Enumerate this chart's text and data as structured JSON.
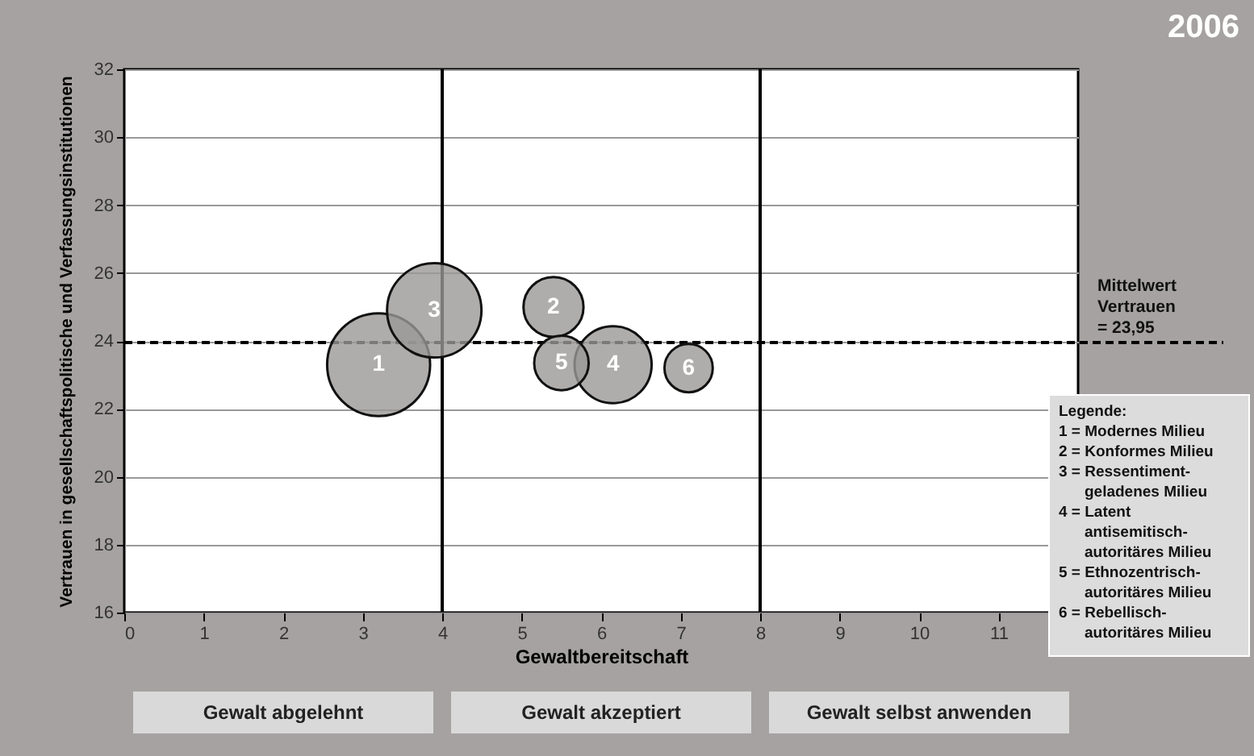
{
  "chart_data": {
    "type": "bubble",
    "title": "2006",
    "xlabel": "Gewaltbereitschaft",
    "ylabel": "Vertrauen in gesellschaftspolitische und Verfassungsinstitutionen",
    "x": [
      3.2,
      5.4,
      3.9,
      6.15,
      5.5,
      7.1
    ],
    "series": [
      {
        "color": "#9a9897",
        "values": [
          23.3,
          25.0,
          24.9,
          23.3,
          23.35,
          23.2
        ],
        "sizes": [
          1,
          0.34,
          0.84,
          0.56,
          0.28,
          0.22
        ]
      }
    ],
    "xlim": [
      0,
      12
    ],
    "xticks": [
      0,
      1,
      2,
      3,
      4,
      5,
      6,
      7,
      8,
      9,
      10,
      11
    ],
    "ylim": [
      16,
      32
    ],
    "yticks": [
      16,
      18,
      20,
      22,
      24,
      26,
      28,
      30,
      32
    ],
    "grid": "y",
    "ref_lines": [
      {
        "axis": "x",
        "value": 4,
        "color": "#000000"
      },
      {
        "axis": "x",
        "value": 8,
        "color": "#000000"
      },
      {
        "axis": "y",
        "value": 23.95,
        "label": "Mittelwert Vertrauen = 23,95",
        "line_style": "dashed",
        "color": "#000000"
      }
    ],
    "annotations": [
      "Gewalt abgelehnt",
      "Gewalt akzeptiert",
      "Gewalt selbst anwenden",
      {
        "text": "1",
        "x": 3.2,
        "y": 23.3
      },
      {
        "text": "2",
        "x": 5.4,
        "y": 25.0
      },
      {
        "text": "3",
        "x": 3.9,
        "y": 24.9
      },
      {
        "text": "4",
        "x": 6.15,
        "y": 23.3
      },
      {
        "text": "5",
        "x": 5.5,
        "y": 23.35
      },
      {
        "text": "6",
        "x": 7.1,
        "y": 23.2
      },
      "Legende:",
      "1 = Modernes Milieu",
      "2 = Konformes Milieu",
      "3 = Ressentiment-geladenes Milieu",
      "4 = Latent antisemitisch-autoritäres Milieu",
      "5 = Ethnozentrisch-autoritäres Milieu",
      "6 = Rebellisch-autoritäres Milieu"
    ]
  }
}
